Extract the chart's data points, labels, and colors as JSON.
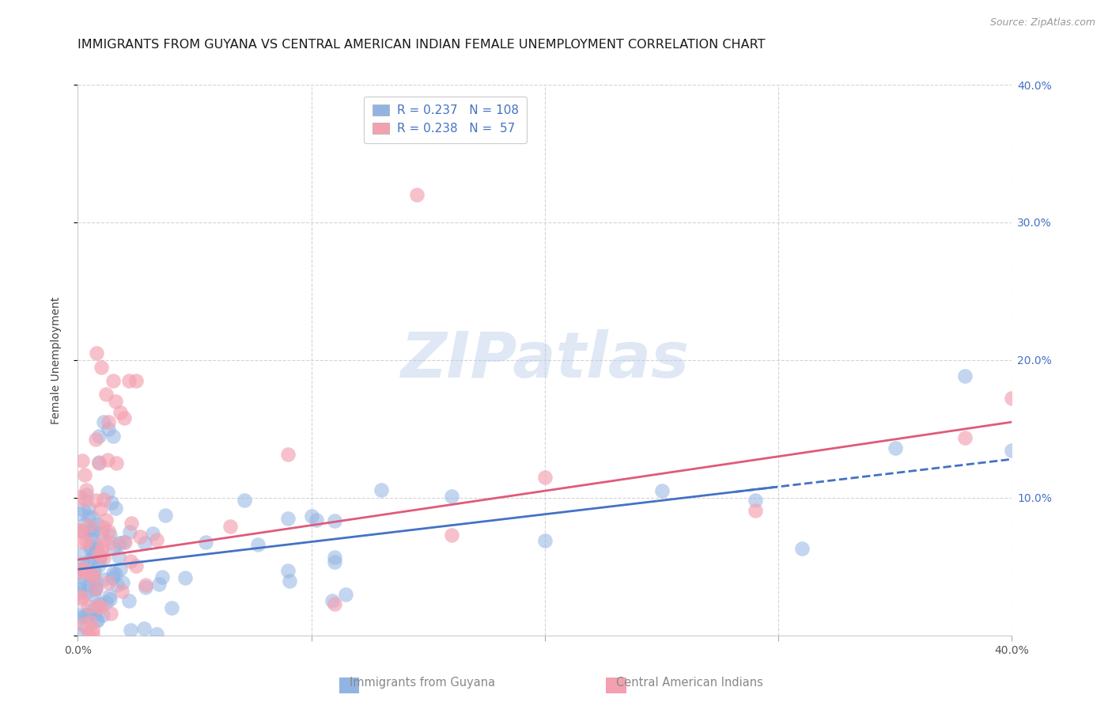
{
  "title": "IMMIGRANTS FROM GUYANA VS CENTRAL AMERICAN INDIAN FEMALE UNEMPLOYMENT CORRELATION CHART",
  "source": "Source: ZipAtlas.com",
  "ylabel": "Female Unemployment",
  "xlim": [
    0.0,
    0.4
  ],
  "ylim": [
    0.0,
    0.4
  ],
  "legend_label1": "Immigrants from Guyana",
  "legend_label2": "Central American Indians",
  "R1": 0.237,
  "N1": 108,
  "R2": 0.238,
  "N2": 57,
  "color1": "#92b4e3",
  "color2": "#f4a0b0",
  "color1_line": "#4472c4",
  "color2_line": "#e05a7a",
  "color_text_blue": "#4472c4",
  "color_text_pink": "#e05a7a",
  "watermark": "ZIPatlas",
  "background": "#ffffff",
  "title_fontsize": 11.5,
  "source_fontsize": 9,
  "axis_label_fontsize": 10,
  "tick_fontsize": 10,
  "legend_fontsize": 11,
  "trend1_x0": 0.0,
  "trend1_y0": 0.048,
  "trend1_x1": 0.4,
  "trend1_y1": 0.128,
  "trend2_x0": 0.0,
  "trend2_y0": 0.055,
  "trend2_x1": 0.4,
  "trend2_y1": 0.155,
  "trend1_solid_end": 0.3,
  "trend1_dashed_start": 0.28
}
